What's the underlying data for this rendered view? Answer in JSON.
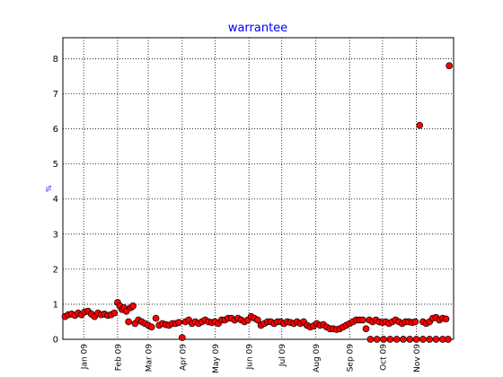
{
  "chart_data": {
    "type": "scatter",
    "title": "warrantee",
    "y_label": "%",
    "x": [
      -17,
      -14,
      -11,
      -8,
      -5,
      -2,
      1,
      4,
      7,
      10,
      13,
      16,
      19,
      22,
      25,
      28,
      31,
      33,
      35,
      37,
      39,
      41,
      43,
      45,
      47,
      50,
      53,
      56,
      59,
      62,
      66,
      69,
      72,
      75,
      78,
      81,
      84,
      87,
      90,
      93,
      96,
      99,
      102,
      105,
      108,
      111,
      114,
      117,
      120,
      123,
      126,
      129,
      132,
      135,
      138,
      141,
      144,
      147,
      150,
      153,
      156,
      159,
      162,
      165,
      168,
      171,
      174,
      177,
      180,
      183,
      186,
      189,
      192,
      195,
      198,
      201,
      204,
      207,
      210,
      213,
      216,
      219,
      222,
      225,
      228,
      231,
      234,
      237,
      240,
      243,
      246,
      249,
      252,
      255,
      258,
      261,
      264,
      267,
      270,
      273,
      276,
      279,
      282,
      285,
      288,
      291,
      294,
      297,
      300,
      303,
      307,
      310,
      313,
      316,
      319,
      322,
      325,
      328,
      331,
      334,
      262,
      268,
      274,
      280,
      286,
      292,
      298,
      304,
      310,
      316,
      322,
      328,
      333
    ],
    "series": [
      {
        "name": "%",
        "color": "#ff0000",
        "values": [
          0.65,
          0.7,
          0.72,
          0.68,
          0.75,
          0.7,
          0.78,
          0.8,
          0.72,
          0.65,
          0.75,
          0.7,
          0.72,
          0.68,
          0.7,
          0.75,
          1.05,
          0.95,
          0.85,
          0.9,
          0.8,
          0.5,
          0.9,
          0.95,
          0.45,
          0.55,
          0.5,
          0.45,
          0.4,
          0.35,
          0.6,
          0.4,
          0.45,
          0.42,
          0.4,
          0.45,
          0.45,
          0.48,
          0.05,
          0.5,
          0.55,
          0.45,
          0.5,
          0.45,
          0.5,
          0.55,
          0.5,
          0.48,
          0.5,
          0.45,
          0.55,
          0.55,
          0.6,
          0.6,
          0.55,
          0.6,
          0.55,
          0.5,
          0.55,
          0.65,
          0.6,
          0.55,
          0.4,
          0.45,
          0.5,
          0.5,
          0.45,
          0.5,
          0.5,
          0.45,
          0.5,
          0.48,
          0.45,
          0.5,
          0.45,
          0.5,
          0.4,
          0.35,
          0.38,
          0.45,
          0.4,
          0.42,
          0.35,
          0.3,
          0.3,
          0.28,
          0.3,
          0.35,
          0.4,
          0.45,
          0.5,
          0.55,
          0.55,
          0.55,
          0.3,
          0.55,
          0.5,
          0.55,
          0.5,
          0.48,
          0.5,
          0.45,
          0.5,
          0.55,
          0.5,
          0.45,
          0.5,
          0.5,
          0.48,
          0.5,
          6.1,
          0.5,
          0.45,
          0.5,
          0.6,
          0.62,
          0.55,
          0.6,
          0.58,
          7.8,
          0,
          0,
          0,
          0,
          0,
          0,
          0,
          0,
          0,
          0,
          0,
          0,
          0
        ]
      }
    ],
    "xlim": [
      -19,
      338
    ],
    "xticks": [
      {
        "value": 0,
        "label": "Jan 09"
      },
      {
        "value": 31,
        "label": "Feb 09"
      },
      {
        "value": 59,
        "label": "Mar 09"
      },
      {
        "value": 90,
        "label": "Apr 09"
      },
      {
        "value": 120,
        "label": "May 09"
      },
      {
        "value": 151,
        "label": "Jun 09"
      },
      {
        "value": 181,
        "label": "Jul 09"
      },
      {
        "value": 212,
        "label": "Aug 09"
      },
      {
        "value": 243,
        "label": "Sep 09"
      },
      {
        "value": 273,
        "label": "Oct 09"
      },
      {
        "value": 304,
        "label": "Nov 09"
      }
    ],
    "ylim": [
      0,
      8.6
    ],
    "yticks": [
      0,
      1,
      2,
      3,
      4,
      5,
      6,
      7,
      8
    ],
    "grid": true
  }
}
